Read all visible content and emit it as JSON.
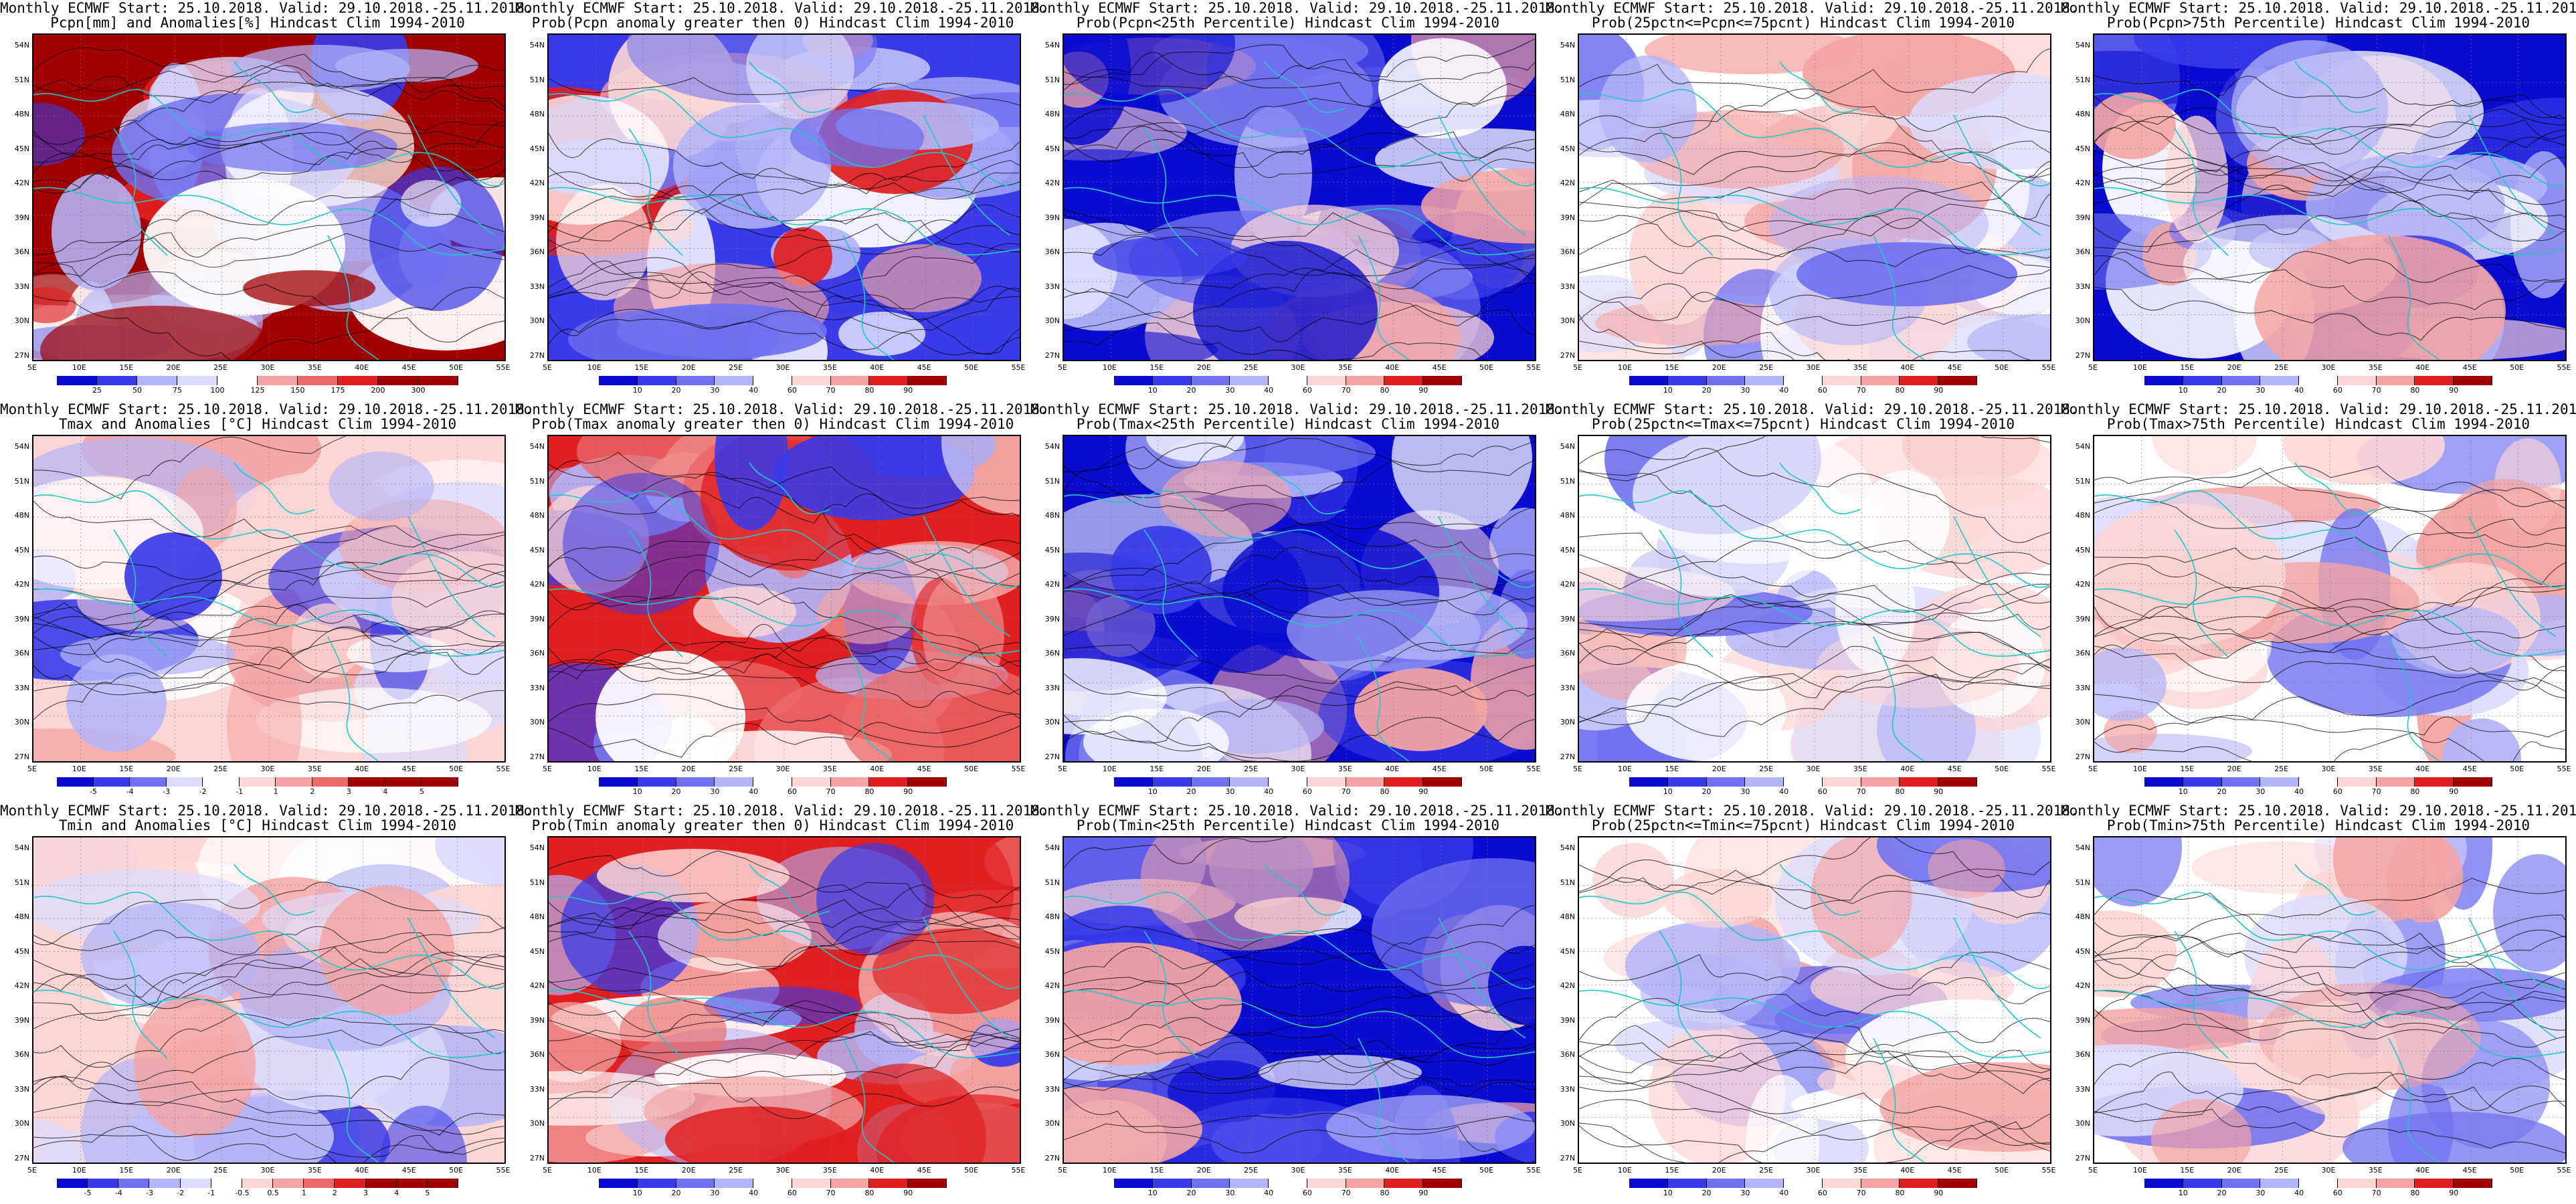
{
  "panels": [
    {
      "row": 0,
      "col": 0,
      "t1": "Monthly ECMWF Start: 25.10.2018. Valid: 29.10.2018.-25.11.2018.",
      "t2": "Pcpn[mm] and Anomalies[%] Hindcast Clim 1994-2010",
      "cbar": [
        "25",
        "50",
        "75",
        "100",
        "125",
        "150",
        "175",
        "200",
        "300"
      ],
      "scheme": "div",
      "tint": "mixed"
    },
    {
      "row": 0,
      "col": 1,
      "t1": "Monthly ECMWF Start: 25.10.2018. Valid: 29.10.2018.-25.11.2018.",
      "t2": "Prob(Pcpn anomaly greater then 0) Hindcast Clim 1994-2010",
      "cbar": [
        "10",
        "20",
        "30",
        "40",
        "60",
        "70",
        "80",
        "90"
      ],
      "scheme": "prob",
      "tint": "blue"
    },
    {
      "row": 0,
      "col": 2,
      "t1": "Monthly ECMWF Start: 25.10.2018. Valid: 29.10.2018.-25.11.2018.",
      "t2": "Prob(Pcpn<25th Percentile) Hindcast Clim 1994-2010",
      "cbar": [
        "10",
        "20",
        "30",
        "40",
        "60",
        "70",
        "80",
        "90"
      ],
      "scheme": "prob",
      "tint": "deepblue"
    },
    {
      "row": 0,
      "col": 3,
      "t1": "Monthly ECMWF Start: 25.10.2018. Valid: 29.10.2018.-25.11.2018.",
      "t2": "Prob(25pctn<=Pcpn<=75pcnt) Hindcast Clim 1994-2010",
      "cbar": [
        "10",
        "20",
        "30",
        "40",
        "60",
        "70",
        "80",
        "90"
      ],
      "scheme": "prob",
      "tint": "pale"
    },
    {
      "row": 0,
      "col": 4,
      "t1": "Monthly ECMWF Start: 25.10.2018. Valid: 29.10.2018.-25.11.2018.",
      "t2": "Prob(Pcpn>75th Percentile) Hindcast Clim 1994-2010",
      "cbar": [
        "10",
        "20",
        "30",
        "40",
        "60",
        "70",
        "80",
        "90"
      ],
      "scheme": "prob",
      "tint": "deepblue"
    },
    {
      "row": 1,
      "col": 0,
      "t1": "Monthly ECMWF Start: 25.10.2018. Valid: 29.10.2018.-25.11.2018.",
      "t2": "Tmax and Anomalies [°C] Hindcast Clim 1994-2010",
      "cbar": [
        "-5",
        "-4",
        "-3",
        "-2",
        "-1",
        "1",
        "2",
        "3",
        "4",
        "5"
      ],
      "scheme": "div",
      "tint": "pink"
    },
    {
      "row": 1,
      "col": 1,
      "t1": "Monthly ECMWF Start: 25.10.2018. Valid: 29.10.2018.-25.11.2018.",
      "t2": "Prob(Tmax anomaly greater then 0) Hindcast Clim 1994-2010",
      "cbar": [
        "10",
        "20",
        "30",
        "40",
        "60",
        "70",
        "80",
        "90"
      ],
      "scheme": "prob",
      "tint": "red"
    },
    {
      "row": 1,
      "col": 2,
      "t1": "Monthly ECMWF Start: 25.10.2018. Valid: 29.10.2018.-25.11.2018.",
      "t2": "Prob(Tmax<25th Percentile) Hindcast Clim 1994-2010",
      "cbar": [
        "10",
        "20",
        "30",
        "40",
        "60",
        "70",
        "80",
        "90"
      ],
      "scheme": "prob",
      "tint": "deepblue"
    },
    {
      "row": 1,
      "col": 3,
      "t1": "Monthly ECMWF Start: 25.10.2018. Valid: 29.10.2018.-25.11.2018.",
      "t2": "Prob(25pctn<=Tmax<=75pcnt) Hindcast Clim 1994-2010",
      "cbar": [
        "10",
        "20",
        "30",
        "40",
        "60",
        "70",
        "80",
        "90"
      ],
      "scheme": "prob",
      "tint": "pale"
    },
    {
      "row": 1,
      "col": 4,
      "t1": "Monthly ECMWF Start: 25.10.2018. Valid: 29.10.2018.-25.11.2018.",
      "t2": "Prob(Tmax>75th Percentile) Hindcast Clim 1994-2010",
      "cbar": [
        "10",
        "20",
        "30",
        "40",
        "60",
        "70",
        "80",
        "90"
      ],
      "scheme": "prob",
      "tint": "pale"
    },
    {
      "row": 2,
      "col": 0,
      "t1": "Monthly ECMWF Start: 25.10.2018. Valid: 29.10.2018.-25.11.2018.",
      "t2": "Tmin and Anomalies [°C] Hindcast Clim 1994-2010",
      "cbar": [
        "-5",
        "-4",
        "-3",
        "-2",
        "-1",
        "-0.5",
        "0.5",
        "1",
        "2",
        "3",
        "4",
        "5"
      ],
      "scheme": "div",
      "tint": "pink"
    },
    {
      "row": 2,
      "col": 1,
      "t1": "Monthly ECMWF Start: 25.10.2018. Valid: 29.10.2018.-25.11.2018.",
      "t2": "Prob(Tmin anomaly greater then 0) Hindcast Clim 1994-2010",
      "cbar": [
        "10",
        "20",
        "30",
        "40",
        "60",
        "70",
        "80",
        "90"
      ],
      "scheme": "prob",
      "tint": "red"
    },
    {
      "row": 2,
      "col": 2,
      "t1": "Monthly ECMWF Start: 25.10.2018. Valid: 29.10.2018.-25.11.2018.",
      "t2": "Prob(Tmin<25th Percentile) Hindcast Clim 1994-2010",
      "cbar": [
        "10",
        "20",
        "30",
        "40",
        "60",
        "70",
        "80",
        "90"
      ],
      "scheme": "prob",
      "tint": "deepblue"
    },
    {
      "row": 2,
      "col": 3,
      "t1": "Monthly ECMWF Start: 25.10.2018. Valid: 29.10.2018.-25.11.2018.",
      "t2": "Prob(25pctn<=Tmin<=75pcnt) Hindcast Clim 1994-2010",
      "cbar": [
        "10",
        "20",
        "30",
        "40",
        "60",
        "70",
        "80",
        "90"
      ],
      "scheme": "prob",
      "tint": "pale"
    },
    {
      "row": 2,
      "col": 4,
      "t1": "Monthly ECMWF Start: 25.10.2018. Valid: 29.10.2018.-25.11.2018.",
      "t2": "Prob(Tmin>75th Percentile) Hindcast Clim 1994-2010",
      "cbar": [
        "10",
        "20",
        "30",
        "40",
        "60",
        "70",
        "80",
        "90"
      ],
      "scheme": "prob",
      "tint": "pale"
    }
  ],
  "lat_labels": [
    "54N",
    "51N",
    "48N",
    "45N",
    "42N",
    "39N",
    "36N",
    "33N",
    "30N",
    "27N"
  ],
  "lon_labels": [
    "5E",
    "10E",
    "15E",
    "20E",
    "25E",
    "30E",
    "35E",
    "40E",
    "45E",
    "50E",
    "55E"
  ],
  "colors": {
    "deep_blue": "#0b0bd0",
    "blue": "#3a3ae8",
    "mid_blue": "#7070f0",
    "light_blue": "#b4b4f8",
    "pale_blue": "#dcdcfc",
    "white": "#ffffff",
    "pale_red": "#fcd6d6",
    "light_red": "#f4a4a4",
    "mid_red": "#ec6a6a",
    "red": "#e02020",
    "dark_red": "#a00000",
    "coast": "#1fc8c8",
    "contour": "#000000"
  }
}
